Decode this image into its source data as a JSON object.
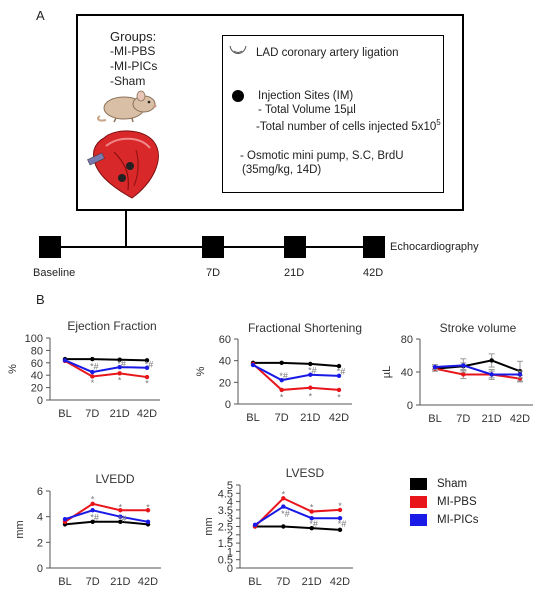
{
  "panelA": {
    "letter": "A",
    "groups_title": "Groups:",
    "groups": [
      "-MI-PBS",
      "-MI-PICs",
      "-Sham"
    ],
    "ligation_label": "LAD coronary artery ligation",
    "injection_title": "Injection Sites (IM)",
    "volume_line": "- Total Volume 15µl",
    "cells_line": "-Total number of cells injected 5x10",
    "cells_exponent": "5",
    "pump_line1": "- Osmotic mini pump, S.C, BrdU",
    "pump_line2": "(35mg/kg, 14D)",
    "timeline": [
      "Baseline",
      "7D",
      "21D",
      "42D"
    ],
    "timeline_end_label": "Echocardiography"
  },
  "panelB": {
    "letter": "B"
  },
  "colors": {
    "sham": "#000000",
    "mi_pbs": "#e8151b",
    "mi_pics": "#1a1ae6",
    "error_bar": "#999999"
  },
  "legend": [
    {
      "name": "Sham",
      "color": "#000000"
    },
    {
      "name": "MI-PBS",
      "color": "#e8151b"
    },
    {
      "name": "MI-PICs",
      "color": "#1a1ae6"
    }
  ],
  "chart_data": [
    {
      "type": "line",
      "title": "Ejection Fraction",
      "ylabel": "%",
      "categories": [
        "BL",
        "7D",
        "21D",
        "42D"
      ],
      "ylim": [
        0,
        100
      ],
      "yticks": [
        0,
        20,
        40,
        60,
        80,
        100
      ],
      "series": [
        {
          "name": "Sham",
          "values": [
            66,
            66,
            65,
            64
          ]
        },
        {
          "name": "MI-PBS",
          "values": [
            63,
            38,
            43,
            37
          ]
        },
        {
          "name": "MI-PICs",
          "values": [
            64,
            45,
            53,
            52
          ]
        }
      ],
      "annotations": [
        {
          "text": "*",
          "category": "7D",
          "value": 29
        },
        {
          "text": "*#",
          "category": "7D",
          "value": 56
        },
        {
          "text": "*",
          "category": "21D",
          "value": 33
        },
        {
          "text": "*#",
          "category": "21D",
          "value": 60
        },
        {
          "text": "*",
          "category": "42D",
          "value": 28
        },
        {
          "text": "*#",
          "category": "42D",
          "value": 59
        }
      ]
    },
    {
      "type": "line",
      "title": "Fractional Shortening",
      "ylabel": "%",
      "categories": [
        "BL",
        "7D",
        "21D",
        "42D"
      ],
      "ylim": [
        0,
        60
      ],
      "yticks": [
        0,
        20,
        40,
        60
      ],
      "series": [
        {
          "name": "Sham",
          "values": [
            38,
            38,
            37,
            35
          ]
        },
        {
          "name": "MI-PBS",
          "values": [
            37,
            13,
            15,
            13
          ]
        },
        {
          "name": "MI-PICs",
          "values": [
            36,
            22,
            27,
            26
          ]
        }
      ],
      "annotations": [
        {
          "text": "*",
          "category": "7D",
          "value": 7
        },
        {
          "text": "*#",
          "category": "7D",
          "value": 27
        },
        {
          "text": "*",
          "category": "21D",
          "value": 8
        },
        {
          "text": "*#",
          "category": "21D",
          "value": 32
        },
        {
          "text": "*",
          "category": "42D",
          "value": 7
        },
        {
          "text": "*#",
          "category": "42D",
          "value": 31
        }
      ]
    },
    {
      "type": "line",
      "title": "Stroke volume",
      "ylabel": "µL",
      "categories": [
        "BL",
        "7D",
        "21D",
        "42D"
      ],
      "ylim": [
        0,
        80
      ],
      "yticks": [
        0,
        40,
        80
      ],
      "series": [
        {
          "name": "Sham",
          "values": [
            44,
            47,
            54,
            41
          ],
          "errors": [
            3,
            4,
            8,
            12
          ]
        },
        {
          "name": "MI-PBS",
          "values": [
            44,
            37,
            37,
            32
          ],
          "errors": [
            3,
            5,
            4,
            4
          ]
        },
        {
          "name": "MI-PICs",
          "values": [
            46,
            48,
            37,
            37
          ],
          "errors": [
            3,
            8,
            6,
            4
          ]
        }
      ]
    },
    {
      "type": "line",
      "title": "LVEDD",
      "ylabel": "mm",
      "categories": [
        "BL",
        "7D",
        "21D",
        "42D"
      ],
      "ylim": [
        0,
        6
      ],
      "yticks": [
        0,
        2,
        4,
        6
      ],
      "series": [
        {
          "name": "Sham",
          "values": [
            3.4,
            3.6,
            3.6,
            3.4
          ]
        },
        {
          "name": "MI-PBS",
          "values": [
            3.6,
            5.0,
            4.5,
            4.5
          ]
        },
        {
          "name": "MI-PICs",
          "values": [
            3.8,
            4.5,
            4.0,
            3.6
          ]
        }
      ],
      "annotations": [
        {
          "text": "*",
          "category": "7D",
          "value": 5.4
        },
        {
          "text": "*#",
          "category": "7D",
          "value": 4.0
        },
        {
          "text": "*",
          "category": "21D",
          "value": 4.8
        },
        {
          "text": "*#",
          "category": "21D",
          "value": 3.9
        },
        {
          "text": "*",
          "category": "42D",
          "value": 4.8
        }
      ]
    },
    {
      "type": "line",
      "title": "LVESD",
      "ylabel": "mm",
      "categories": [
        "BL",
        "7D",
        "21D",
        "42D"
      ],
      "ylim": [
        0,
        5
      ],
      "yticks": [
        0,
        0.5,
        1,
        1.5,
        2,
        2.5,
        3,
        3.5,
        4,
        4.5,
        5
      ],
      "series": [
        {
          "name": "Sham",
          "values": [
            2.5,
            2.5,
            2.4,
            2.3
          ]
        },
        {
          "name": "MI-PBS",
          "values": [
            2.5,
            4.2,
            3.4,
            3.5
          ]
        },
        {
          "name": "MI-PICs",
          "values": [
            2.6,
            3.7,
            3.0,
            3.0
          ]
        }
      ],
      "annotations": [
        {
          "text": "*",
          "category": "7D",
          "value": 4.5
        },
        {
          "text": "*#",
          "category": "7D",
          "value": 3.3
        },
        {
          "text": "*",
          "category": "21D",
          "value": 3.7
        },
        {
          "text": "*#",
          "category": "21D",
          "value": 2.7
        },
        {
          "text": "*",
          "category": "42D",
          "value": 3.8
        },
        {
          "text": "*#",
          "category": "42D",
          "value": 2.7
        }
      ]
    }
  ]
}
